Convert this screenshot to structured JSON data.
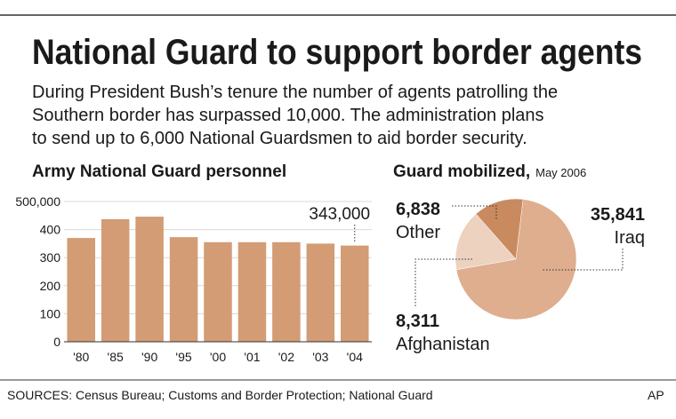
{
  "title": "National Guard to support border agents",
  "subtitle": [
    "During President Bush’s tenure the number of agents patrolling the",
    "Southern border has surpassed 10,000. The administration plans",
    "to send up to 6,000 National Guardsmen to aid border security."
  ],
  "source": "SOURCES: Census Bureau; Customs and Border Protection; National Guard",
  "credit": "AP",
  "chart_data": [
    {
      "type": "bar",
      "title": "Army National Guard personnel",
      "categories": [
        "'80",
        "'85",
        "'90",
        "'95",
        "'00",
        "'01",
        "'02",
        "'03",
        "'04"
      ],
      "values": [
        370000,
        437000,
        446000,
        373000,
        355000,
        355000,
        355000,
        350000,
        343000
      ],
      "value_labels": [
        null,
        null,
        null,
        null,
        null,
        null,
        null,
        null,
        "343,000"
      ],
      "color": "#d39c74",
      "ylim": [
        0,
        500000
      ],
      "yticks": [
        0,
        {
          "value": 100000,
          "label": "100"
        },
        {
          "value": 200000,
          "label": "200"
        },
        {
          "value": 300000,
          "label": "300"
        },
        {
          "value": 400000,
          "label": "400"
        },
        {
          "value": 500000,
          "label": "500,000"
        }
      ],
      "grid": true
    },
    {
      "type": "pie",
      "title": "Guard mobilized,",
      "subtitle": "May 2006",
      "categories": [
        "Other",
        "Afghanistan",
        "Iraq"
      ],
      "values": [
        6838,
        8311,
        35841
      ],
      "value_labels": [
        "6,838",
        "8,311",
        "35,841"
      ],
      "colors": [
        "#c98a5f",
        "#edd2bf",
        "#deae8e"
      ]
    }
  ]
}
